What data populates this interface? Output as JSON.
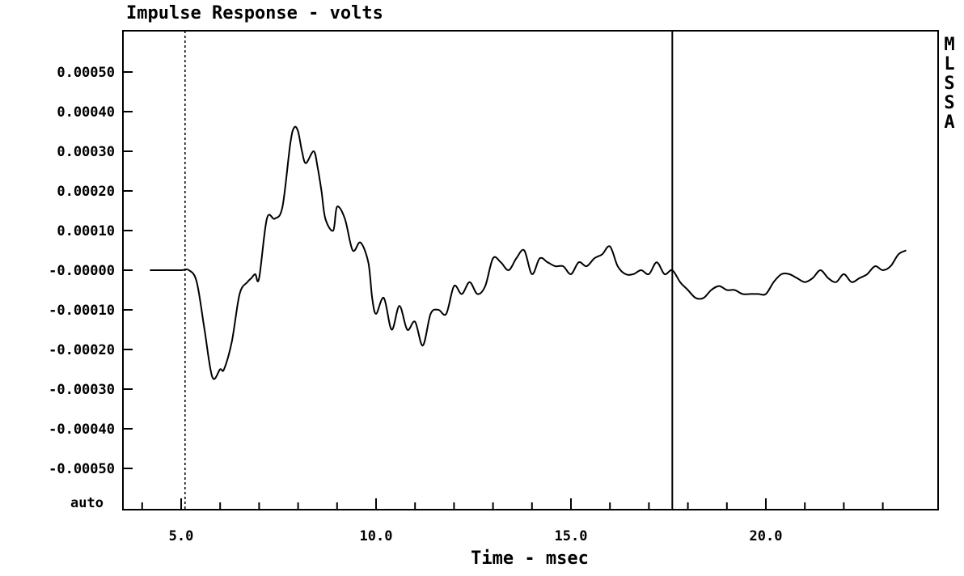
{
  "chart_data": {
    "type": "line",
    "title": "Impulse Response - volts",
    "xlabel": "Time - msec",
    "ylabel": "",
    "side_label": [
      "M",
      "L",
      "S",
      "S",
      "A"
    ],
    "bottom_left_label": "auto",
    "xlim": [
      3.8,
      24.0
    ],
    "ylim": [
      -0.0006,
      0.0006
    ],
    "x_ticks": [
      5.0,
      10.0,
      15.0,
      20.0
    ],
    "x_tick_labels": [
      "5.0",
      "10.0",
      "15.0",
      "20.0"
    ],
    "y_ticks": [
      0.0005,
      0.0004,
      0.0003,
      0.0002,
      0.0001,
      0.0,
      -0.0001,
      -0.0002,
      -0.0003,
      -0.0004,
      -0.0005
    ],
    "y_tick_labels": [
      "0.00050",
      "0.00040",
      "0.00030",
      "0.00020",
      "0.00010",
      "-0.00000",
      "-0.00010",
      "-0.00020",
      "-0.00030",
      "-0.00040",
      "-0.00050"
    ],
    "markers": [
      {
        "x": 5.1,
        "style": "dashed"
      },
      {
        "x": 17.6,
        "style": "solid"
      }
    ],
    "series": [
      {
        "x": [
          4.2,
          4.6,
          5.0,
          5.2,
          5.4,
          5.6,
          5.8,
          6.0,
          6.1,
          6.3,
          6.5,
          6.7,
          6.8,
          6.9,
          7.0,
          7.2,
          7.4,
          7.6,
          7.8,
          7.9,
          8.0,
          8.1,
          8.2,
          8.4,
          8.5,
          8.6,
          8.7,
          8.9,
          9.0,
          9.2,
          9.4,
          9.6,
          9.8,
          9.9,
          10.0,
          10.2,
          10.4,
          10.6,
          10.8,
          11.0,
          11.2,
          11.4,
          11.6,
          11.8,
          12.0,
          12.2,
          12.4,
          12.6,
          12.8,
          13.0,
          13.2,
          13.4,
          13.6,
          13.8,
          14.0,
          14.2,
          14.4,
          14.6,
          14.8,
          15.0,
          15.2,
          15.4,
          15.6,
          15.8,
          16.0,
          16.2,
          16.4,
          16.6,
          16.8,
          17.0,
          17.2,
          17.4,
          17.6,
          17.8,
          18.0,
          18.2,
          18.4,
          18.6,
          18.8,
          19.0,
          19.2,
          19.4,
          19.6,
          19.8,
          20.0,
          20.2,
          20.4,
          20.6,
          20.8,
          21.0,
          21.2,
          21.4,
          21.6,
          21.8,
          22.0,
          22.2,
          22.4,
          22.6,
          22.8,
          23.0,
          23.2,
          23.4,
          23.6
        ],
        "y": [
          0.0,
          0.0,
          0.0,
          0.0,
          -3e-05,
          -0.00015,
          -0.00027,
          -0.00025,
          -0.00025,
          -0.00018,
          -6e-05,
          -3e-05,
          -2e-05,
          -1e-05,
          -2e-05,
          0.00013,
          0.00013,
          0.00016,
          0.00032,
          0.00036,
          0.00035,
          0.0003,
          0.00027,
          0.0003,
          0.00026,
          0.0002,
          0.00013,
          0.0001,
          0.00016,
          0.00013,
          5e-05,
          7e-05,
          2e-05,
          -7e-05,
          -0.00011,
          -7e-05,
          -0.00015,
          -9e-05,
          -0.00015,
          -0.00013,
          -0.00019,
          -0.00011,
          -0.0001,
          -0.00011,
          -4e-05,
          -6e-05,
          -3e-05,
          -6e-05,
          -4e-05,
          3e-05,
          2e-05,
          0.0,
          3e-05,
          5e-05,
          -1e-05,
          3e-05,
          2e-05,
          1e-05,
          1e-05,
          -1e-05,
          2e-05,
          1e-05,
          3e-05,
          4e-05,
          6e-05,
          1e-05,
          -1e-05,
          -1e-05,
          0.0,
          -1e-05,
          2e-05,
          -1e-05,
          0.0,
          -3e-05,
          -5e-05,
          -7e-05,
          -7e-05,
          -5e-05,
          -4e-05,
          -5e-05,
          -5e-05,
          -6e-05,
          -6e-05,
          -6e-05,
          -6e-05,
          -3e-05,
          -1e-05,
          -1e-05,
          -2e-05,
          -3e-05,
          -2e-05,
          0.0,
          -2e-05,
          -3e-05,
          -1e-05,
          -3e-05,
          -2e-05,
          -1e-05,
          1e-05,
          0.0,
          1e-05,
          4e-05,
          5e-05
        ]
      }
    ]
  }
}
